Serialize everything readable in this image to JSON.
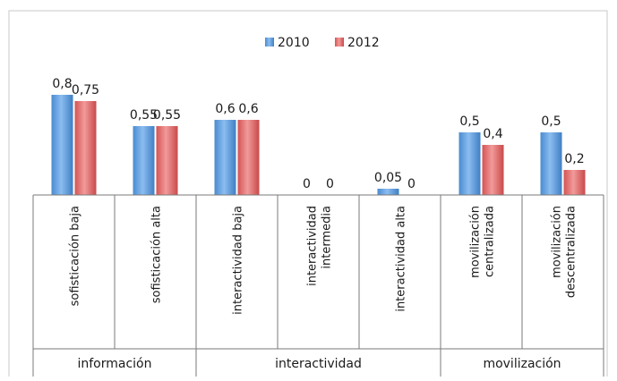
{
  "colors": {
    "series_2010": "#5b9bd5",
    "series_2010_dark": "#3f7fc4",
    "series_2012": "#e06666",
    "series_2012_dark": "#c94a4a",
    "axis": "#7a7a7a",
    "frame": "#b8b8b8"
  },
  "chart_data": {
    "type": "bar",
    "title": "",
    "xlabel": "",
    "ylabel": "",
    "ylim": [
      0,
      0.9
    ],
    "grid": false,
    "legend": "top-center",
    "categories": [
      "sofisticación baja",
      "sofisticación alta",
      "interactividad baja",
      "interactividad intermedia",
      "interactividad alta",
      "movilización centralizada",
      "movilización descentralizada"
    ],
    "category_label_lines": [
      [
        "sofisticación baja"
      ],
      [
        "sofisticación alta"
      ],
      [
        "interactividad baja"
      ],
      [
        "interactividad",
        "intermedia"
      ],
      [
        "interactividad alta"
      ],
      [
        "movilización",
        "centralizada"
      ],
      [
        "movilización",
        "descentralizada"
      ]
    ],
    "groups": [
      {
        "label": "información",
        "categories": [
          0,
          1
        ]
      },
      {
        "label": "interactividad",
        "categories": [
          2,
          3,
          4
        ]
      },
      {
        "label": "movilización",
        "categories": [
          5,
          6
        ]
      }
    ],
    "series": [
      {
        "name": "2010",
        "values": [
          0.8,
          0.55,
          0.6,
          0,
          0.05,
          0.5,
          0.5
        ],
        "labels": [
          "0,8",
          "0,55",
          "0,6",
          "0",
          "0,05",
          "0,5",
          "0,5"
        ]
      },
      {
        "name": "2012",
        "values": [
          0.75,
          0.55,
          0.6,
          0,
          0,
          0.4,
          0.2
        ],
        "labels": [
          "0,75",
          "0,55",
          "0,6",
          "0",
          "0",
          "0,4",
          "0,2"
        ]
      }
    ]
  }
}
